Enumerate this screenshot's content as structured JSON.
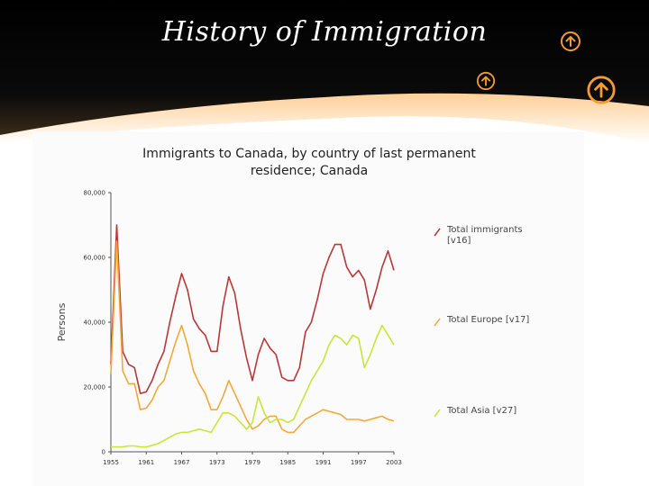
{
  "slide": {
    "title": "History of Immigration"
  },
  "colors": {
    "header_dark": "#050505",
    "header_accent": "#ff8a1a",
    "icon_orange": "#f39a33",
    "series_total": "#b8383a",
    "series_europe": "#f2a93b",
    "series_asia": "#c8e63a"
  },
  "icons": [
    "up-arrow-circle-icon",
    "up-arrow-circle-icon",
    "up-arrow-circle-icon"
  ],
  "chart_data": {
    "type": "line",
    "title_lines": [
      "Immigrants to Canada, by country of last permanent",
      "residence; Canada"
    ],
    "ylabel": "Persons",
    "xlabel": "",
    "ylim": [
      0,
      80000
    ],
    "yticks": [
      0,
      20000,
      40000,
      60000,
      80000
    ],
    "ytick_labels": [
      "0",
      "20,000",
      "40,000",
      "60,000",
      "80,000"
    ],
    "xlim": [
      1955,
      2003
    ],
    "xticks": [
      1955,
      1961,
      1967,
      1973,
      1979,
      1985,
      1991,
      1997,
      2003
    ],
    "grid": false,
    "legend_position": "right",
    "x": [
      1955,
      1956,
      1957,
      1958,
      1959,
      1960,
      1961,
      1962,
      1963,
      1964,
      1965,
      1966,
      1967,
      1968,
      1969,
      1970,
      1971,
      1972,
      1973,
      1974,
      1975,
      1976,
      1977,
      1978,
      1979,
      1980,
      1981,
      1982,
      1983,
      1984,
      1985,
      1986,
      1987,
      1988,
      1989,
      1990,
      1991,
      1992,
      1993,
      1994,
      1995,
      1996,
      1997,
      1998,
      1999,
      2000,
      2001,
      2002,
      2003
    ],
    "series": [
      {
        "name": "Total immigrants",
        "code": "[v16]",
        "values": [
          27000,
          70000,
          31000,
          27000,
          26000,
          18000,
          18500,
          22000,
          27000,
          31000,
          40000,
          48000,
          55000,
          50000,
          41000,
          38000,
          36000,
          31000,
          31000,
          45000,
          54000,
          49000,
          38000,
          29000,
          22000,
          30000,
          35000,
          32000,
          30000,
          23000,
          22000,
          22000,
          26000,
          37000,
          40000,
          47000,
          55000,
          60000,
          64000,
          64000,
          57000,
          54000,
          56000,
          53000,
          44000,
          50000,
          57000,
          62000,
          56000
        ]
      },
      {
        "name": "Total Europe",
        "code": "[v17]",
        "values": [
          24000,
          65000,
          25000,
          21000,
          21000,
          13000,
          13500,
          16000,
          20000,
          22000,
          28000,
          34000,
          39000,
          33000,
          25000,
          21000,
          18000,
          13000,
          13000,
          17000,
          22000,
          18000,
          14000,
          10000,
          7000,
          8000,
          10000,
          11000,
          11000,
          7000,
          6000,
          6000,
          8000,
          10000,
          11000,
          12000,
          13000,
          12500,
          12000,
          11500,
          10000,
          10000,
          10000,
          9500,
          10000,
          10500,
          11000,
          10000,
          9500
        ]
      },
      {
        "name": "Total Asia",
        "code": "[v27]",
        "values": [
          1500,
          1500,
          1500,
          1800,
          1800,
          1500,
          1500,
          2000,
          2500,
          3500,
          4500,
          5500,
          6000,
          6000,
          6500,
          7000,
          6500,
          6000,
          9000,
          12000,
          12000,
          11000,
          9000,
          7000,
          9000,
          17000,
          12000,
          9000,
          10000,
          10000,
          9000,
          10000,
          14000,
          18000,
          22000,
          25000,
          28000,
          33000,
          36000,
          35000,
          33000,
          36000,
          35000,
          26000,
          30000,
          35000,
          39000,
          36000,
          33000
        ]
      }
    ]
  }
}
